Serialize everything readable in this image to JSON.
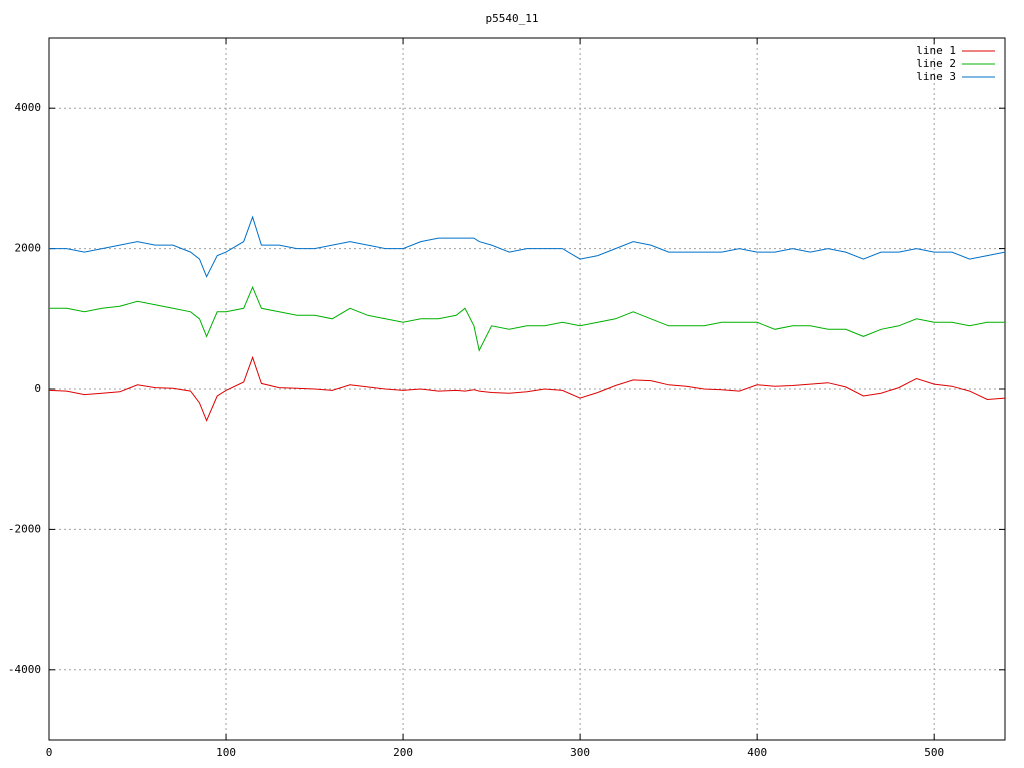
{
  "chart_data": {
    "type": "line",
    "title": "p5540_11",
    "x": [
      0,
      10,
      20,
      30,
      40,
      50,
      60,
      70,
      80,
      85,
      89,
      95,
      100,
      110,
      115,
      120,
      130,
      140,
      150,
      160,
      170,
      180,
      190,
      200,
      210,
      220,
      230,
      235,
      240,
      243,
      250,
      260,
      270,
      280,
      290,
      300,
      310,
      320,
      330,
      340,
      350,
      360,
      370,
      380,
      390,
      400,
      410,
      420,
      430,
      440,
      450,
      460,
      470,
      480,
      490,
      500,
      510,
      520,
      530,
      540
    ],
    "series": [
      {
        "name": "line 1",
        "color": "#dd0000",
        "values": [
          -20,
          -30,
          -80,
          -60,
          -40,
          60,
          20,
          10,
          -30,
          -200,
          -450,
          -100,
          -20,
          100,
          450,
          80,
          20,
          10,
          0,
          -20,
          60,
          30,
          0,
          -20,
          0,
          -30,
          -20,
          -30,
          -10,
          -30,
          -50,
          -60,
          -40,
          0,
          -20,
          -130,
          -50,
          50,
          130,
          120,
          60,
          40,
          0,
          -10,
          -30,
          60,
          40,
          50,
          70,
          90,
          30,
          -100,
          -60,
          20,
          150,
          70,
          40,
          -30,
          -150,
          -130
        ]
      },
      {
        "name": "line 2",
        "color": "#00b000",
        "values": [
          1150,
          1150,
          1100,
          1150,
          1180,
          1250,
          1200,
          1150,
          1100,
          1000,
          750,
          1100,
          1100,
          1150,
          1450,
          1150,
          1100,
          1050,
          1050,
          1000,
          1150,
          1050,
          1000,
          950,
          1000,
          1000,
          1050,
          1150,
          900,
          550,
          900,
          850,
          900,
          900,
          950,
          900,
          950,
          1000,
          1100,
          1000,
          900,
          900,
          900,
          950,
          950,
          950,
          850,
          900,
          900,
          850,
          850,
          750,
          850,
          900,
          1000,
          950,
          950,
          900,
          950,
          950
        ]
      },
      {
        "name": "line 3",
        "color": "#0070c8",
        "values": [
          2000,
          2000,
          1950,
          2000,
          2050,
          2100,
          2050,
          2050,
          1950,
          1850,
          1600,
          1900,
          1950,
          2100,
          2450,
          2050,
          2050,
          2000,
          2000,
          2050,
          2100,
          2050,
          2000,
          2000,
          2100,
          2150,
          2150,
          2150,
          2150,
          2100,
          2050,
          1950,
          2000,
          2000,
          2000,
          1850,
          1900,
          2000,
          2100,
          2050,
          1950,
          1950,
          1950,
          1950,
          2000,
          1950,
          1950,
          2000,
          1950,
          2000,
          1950,
          1850,
          1950,
          1950,
          2000,
          1950,
          1950,
          1850,
          1900,
          1950
        ]
      }
    ],
    "xlim": [
      0,
      540
    ],
    "ylim": [
      -5000,
      5000
    ],
    "xticks": [
      0,
      100,
      200,
      300,
      400,
      500
    ],
    "yticks": [
      -4000,
      -2000,
      0,
      2000,
      4000
    ],
    "grid": true,
    "legend": "top-right"
  }
}
